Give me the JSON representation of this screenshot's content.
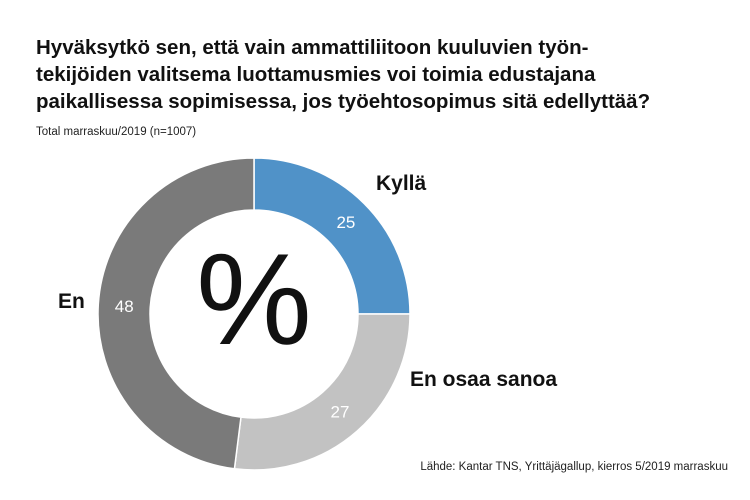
{
  "title_lines": [
    "Hyväksytkö sen, että vain ammattiliitoon kuuluvien työn-",
    "tekijöiden valitsema luottamusmies voi toimia edustajana",
    "paikallisessa sopimisessa, jos työehtosopimus sitä edellyttää?"
  ],
  "subtitle": "Total marraskuu/2019 (n=1007)",
  "source": "Lähde: Kantar TNS, Yrittäjägallup, kierros 5/2019 marraskuu",
  "center_symbol": "%",
  "chart_data": {
    "type": "pie",
    "donut": true,
    "title": "Hyväksytkö sen, että vain ammattiliitoon kuuluvien työntekijöiden valitsema luottamusmies voi toimia edustajana paikallisessa sopimisessa, jos työehtosopimus sitä edellyttää?",
    "subtitle": "Total marraskuu/2019 (n=1007)",
    "unit": "%",
    "categories": [
      "Kyllä",
      "En osaa sanoa",
      "En"
    ],
    "values": [
      25,
      27,
      48
    ],
    "colors": [
      "#5092c8",
      "#c2c2c2",
      "#7a7a7a"
    ],
    "start_angle_deg": 0,
    "direction": "clockwise"
  }
}
